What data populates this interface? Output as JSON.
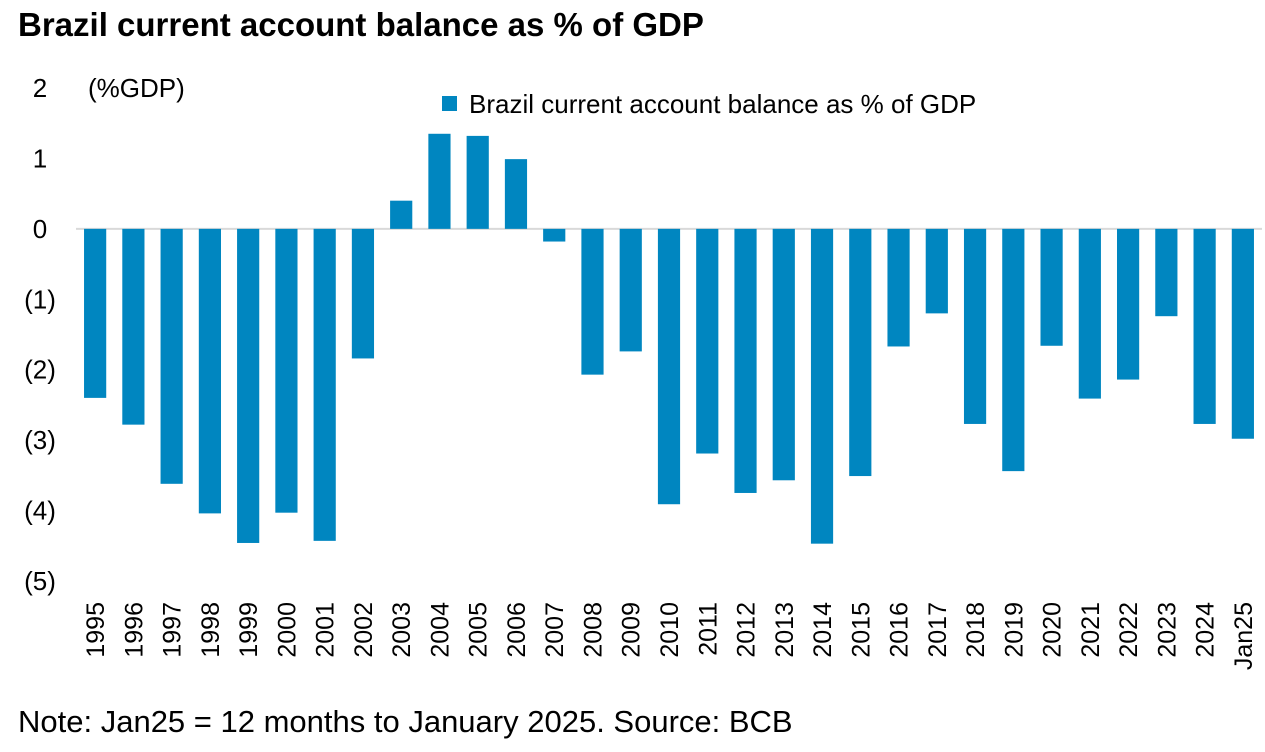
{
  "title": "Brazil current account balance as % of GDP",
  "note": "Note: Jan25 = 12 months to January 2025.  Source: BCB",
  "colors": {
    "bar": "#0086C0",
    "zero_line": "#D9D9D9"
  },
  "chart_data": {
    "type": "bar",
    "title": "Brazil current account balance as % of GDP",
    "ylabel": "(%GDP)",
    "xlabel": "",
    "ylim": [
      -5,
      2
    ],
    "yticks": [
      2,
      1,
      0,
      -1,
      -2,
      -3,
      -4,
      -5
    ],
    "ytick_labels": [
      "2",
      "1",
      "0",
      "(1)",
      "(2)",
      "(3)",
      "(4)",
      "(5)"
    ],
    "grid": false,
    "legend_position": "top-center",
    "categories": [
      "1995",
      "1996",
      "1997",
      "1998",
      "1999",
      "2000",
      "2001",
      "2002",
      "2003",
      "2004",
      "2005",
      "2006",
      "2007",
      "2008",
      "2009",
      "2010",
      "2011",
      "2012",
      "2013",
      "2014",
      "2015",
      "2016",
      "2017",
      "2018",
      "2019",
      "2020",
      "2021",
      "2022",
      "2023",
      "2024",
      "Jan25"
    ],
    "series": [
      {
        "name": "Brazil current account balance as % of GDP",
        "values": [
          -2.4,
          -2.78,
          -3.62,
          -4.04,
          -4.46,
          -4.03,
          -4.43,
          -1.84,
          0.4,
          1.35,
          1.32,
          0.99,
          -0.18,
          -2.07,
          -1.74,
          -3.91,
          -3.19,
          -3.75,
          -3.57,
          -4.47,
          -3.51,
          -1.67,
          -1.2,
          -2.77,
          -3.44,
          -1.66,
          -2.41,
          -2.14,
          -1.24,
          -2.77,
          -2.98
        ]
      }
    ]
  }
}
